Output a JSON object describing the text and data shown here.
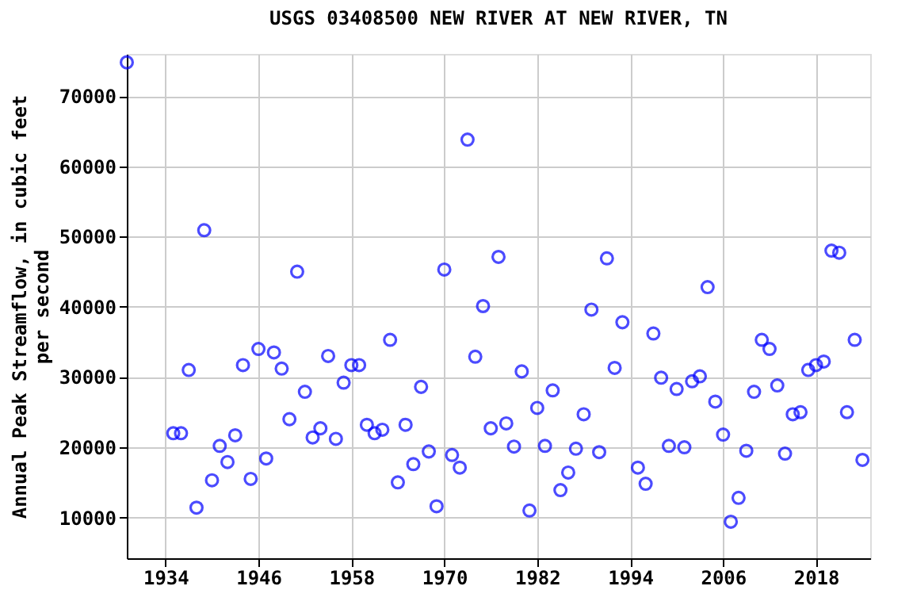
{
  "chart_data": {
    "type": "scatter",
    "title": "USGS 03408500 NEW RIVER AT NEW RIVER, TN",
    "ylabel": "Annual Peak Streamflow, in cubic feet per second",
    "xlim": [
      1929,
      2025
    ],
    "xticks": [
      1934,
      1946,
      1958,
      1970,
      1982,
      1994,
      2006,
      2018
    ],
    "ylim": [
      4200,
      76000
    ],
    "yticks": [
      10000,
      20000,
      30000,
      40000,
      50000,
      60000,
      70000
    ],
    "grid": true,
    "marker": "circle",
    "series": [
      {
        "color": "#0000ff",
        "x": [
          1929,
          1935,
          1936,
          1937,
          1938,
          1939,
          1940,
          1941,
          1942,
          1943,
          1944,
          1945,
          1946,
          1947,
          1948,
          1949,
          1950,
          1951,
          1952,
          1953,
          1954,
          1955,
          1956,
          1957,
          1958,
          1959,
          1960,
          1961,
          1962,
          1963,
          1964,
          1965,
          1966,
          1967,
          1968,
          1969,
          1970,
          1971,
          1972,
          1973,
          1974,
          1975,
          1976,
          1977,
          1978,
          1979,
          1980,
          1981,
          1982,
          1983,
          1984,
          1985,
          1986,
          1987,
          1988,
          1989,
          1990,
          1991,
          1992,
          1993,
          1995,
          1996,
          1997,
          1998,
          1999,
          2000,
          2001,
          2002,
          2003,
          2004,
          2005,
          2006,
          2007,
          2008,
          2009,
          2010,
          2011,
          2012,
          2013,
          2014,
          2015,
          2016,
          2017,
          2018,
          2019,
          2020,
          2021,
          2022,
          2023,
          2024
        ],
        "values": [
          74800,
          22000,
          22000,
          31000,
          11400,
          50900,
          15300,
          20200,
          17900,
          21700,
          31700,
          15500,
          34000,
          18400,
          33500,
          31200,
          24000,
          45000,
          27900,
          21400,
          22700,
          33000,
          21200,
          29200,
          31700,
          31700,
          23200,
          22000,
          22500,
          35300,
          15000,
          23200,
          17600,
          28600,
          19400,
          11600,
          45300,
          18900,
          17100,
          63800,
          32900,
          40100,
          22700,
          47100,
          23400,
          20100,
          30800,
          11000,
          25600,
          20200,
          28100,
          13900,
          16400,
          19800,
          24700,
          39600,
          19300,
          46900,
          31300,
          37800,
          17100,
          14800,
          36200,
          29900,
          20200,
          28300,
          20000,
          29400,
          30100,
          42800,
          26500,
          21800,
          9400,
          12800,
          19500,
          27900,
          35300,
          34000,
          28800,
          19100,
          24700,
          25000,
          31000,
          31700,
          32200,
          48000,
          47700,
          25000,
          35300,
          18200
        ]
      }
    ]
  }
}
